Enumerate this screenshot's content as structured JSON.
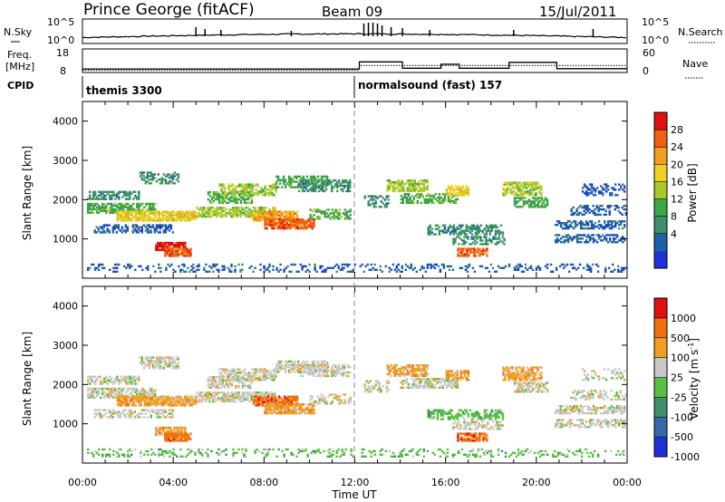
{
  "header": {
    "station": "Prince George (fitACF)",
    "beam": "Beam 09",
    "date": "15/Jul/2011"
  },
  "panels": {
    "nsky": {
      "left_label": "N.Sky",
      "left_ticks": [
        "10^5",
        "10^0"
      ],
      "right_ticks": [
        "10^5",
        "10^0"
      ],
      "right_label": "N.Search"
    },
    "freq": {
      "left_label_1": "Freq.",
      "left_label_2": "[MHz]",
      "left_ticks": [
        "18",
        "8"
      ],
      "right_ticks": [
        "60",
        "0"
      ],
      "right_label": "Nave"
    },
    "cpid": {
      "label": "CPID",
      "segments": [
        "themis 3300",
        "normalsound (fast) 157"
      ]
    }
  },
  "chart_data": {
    "type": "heatmap",
    "x_ticks": [
      "00:00",
      "04:00",
      "08:00",
      "12:00",
      "16:00",
      "20:00",
      "00:00"
    ],
    "xlim_hours": [
      0,
      24
    ],
    "xlabel": "Time UT",
    "ylabel": "Slant Range [km]",
    "ylim": [
      0,
      4500
    ],
    "y_ticks": [
      "4000",
      "3000",
      "2000",
      "1000"
    ],
    "grid": false,
    "cpid_change_hour": 12,
    "power_panel": {
      "colorbar_label": "Power [dB]",
      "colorbar_ticks": [
        "28",
        "24",
        "20",
        "16",
        "12",
        "8",
        "4"
      ],
      "colors": [
        "#2030d8",
        "#1f5fa8",
        "#3f8f6a",
        "#3aa845",
        "#a8c830",
        "#f0d020",
        "#f0a020",
        "#f06010",
        "#e01010"
      ],
      "scale": [
        0,
        32
      ]
    },
    "velocity_panel": {
      "colorbar_label": "Velocity [m s",
      "colorbar_unit_exp": "-1",
      "colorbar_ticks": [
        "1000",
        "500",
        "100",
        "25",
        "-25",
        "-100",
        "-500",
        "-1000"
      ],
      "colors": [
        "#2030d8",
        "#3868a8",
        "#3f8f6a",
        "#58c040",
        "#c8c8c8",
        "#f0a020",
        "#f07010",
        "#e01010"
      ]
    }
  }
}
